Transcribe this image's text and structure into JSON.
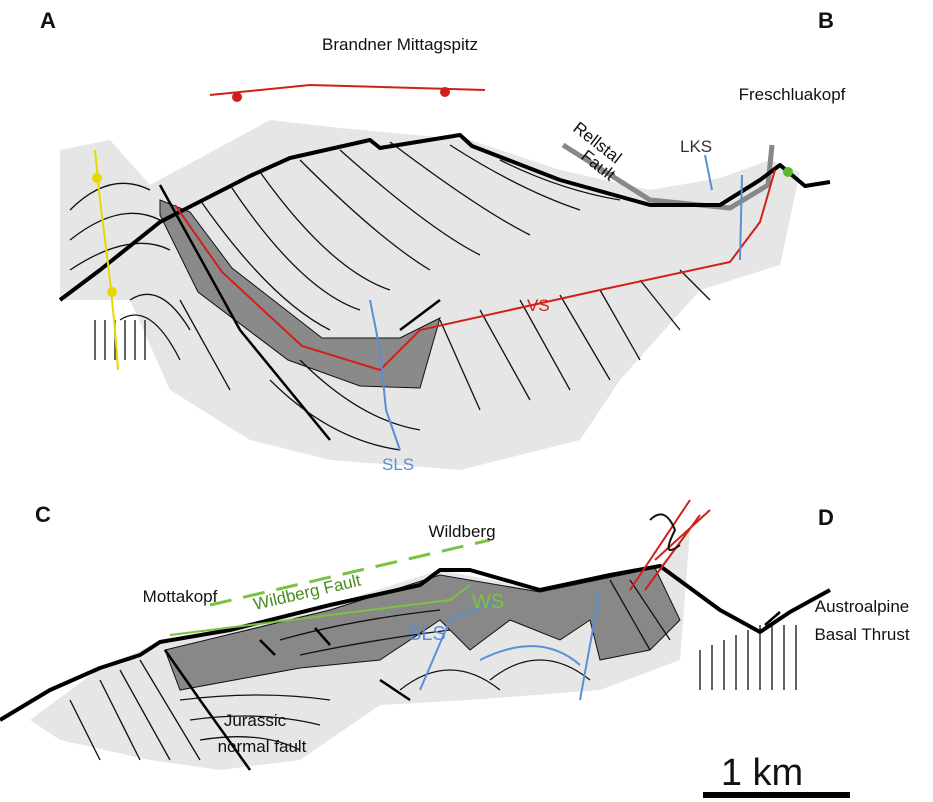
{
  "sections": [
    {
      "start": "A",
      "end": "B",
      "labels": {
        "peak": "Brandner Mittagspitz",
        "peak_right": "Freschluakopf",
        "fault": [
          "Rellstal",
          "Fault"
        ],
        "fold_1": "LKS",
        "fold_2": "VS",
        "fold_3": "SLS"
      }
    },
    {
      "start": "C",
      "end": "D",
      "labels": {
        "peak": "Wildberg",
        "peak_left": "Mottakopf",
        "fault": "Wildberg Fault",
        "fold_1": "WS",
        "fold_2": "SLS",
        "thrust": [
          "Austroalpine",
          "Basal Thrust"
        ],
        "normal_fault": [
          "Jurassic",
          "normal fault"
        ]
      }
    }
  ],
  "scale_bar": "1 km"
}
